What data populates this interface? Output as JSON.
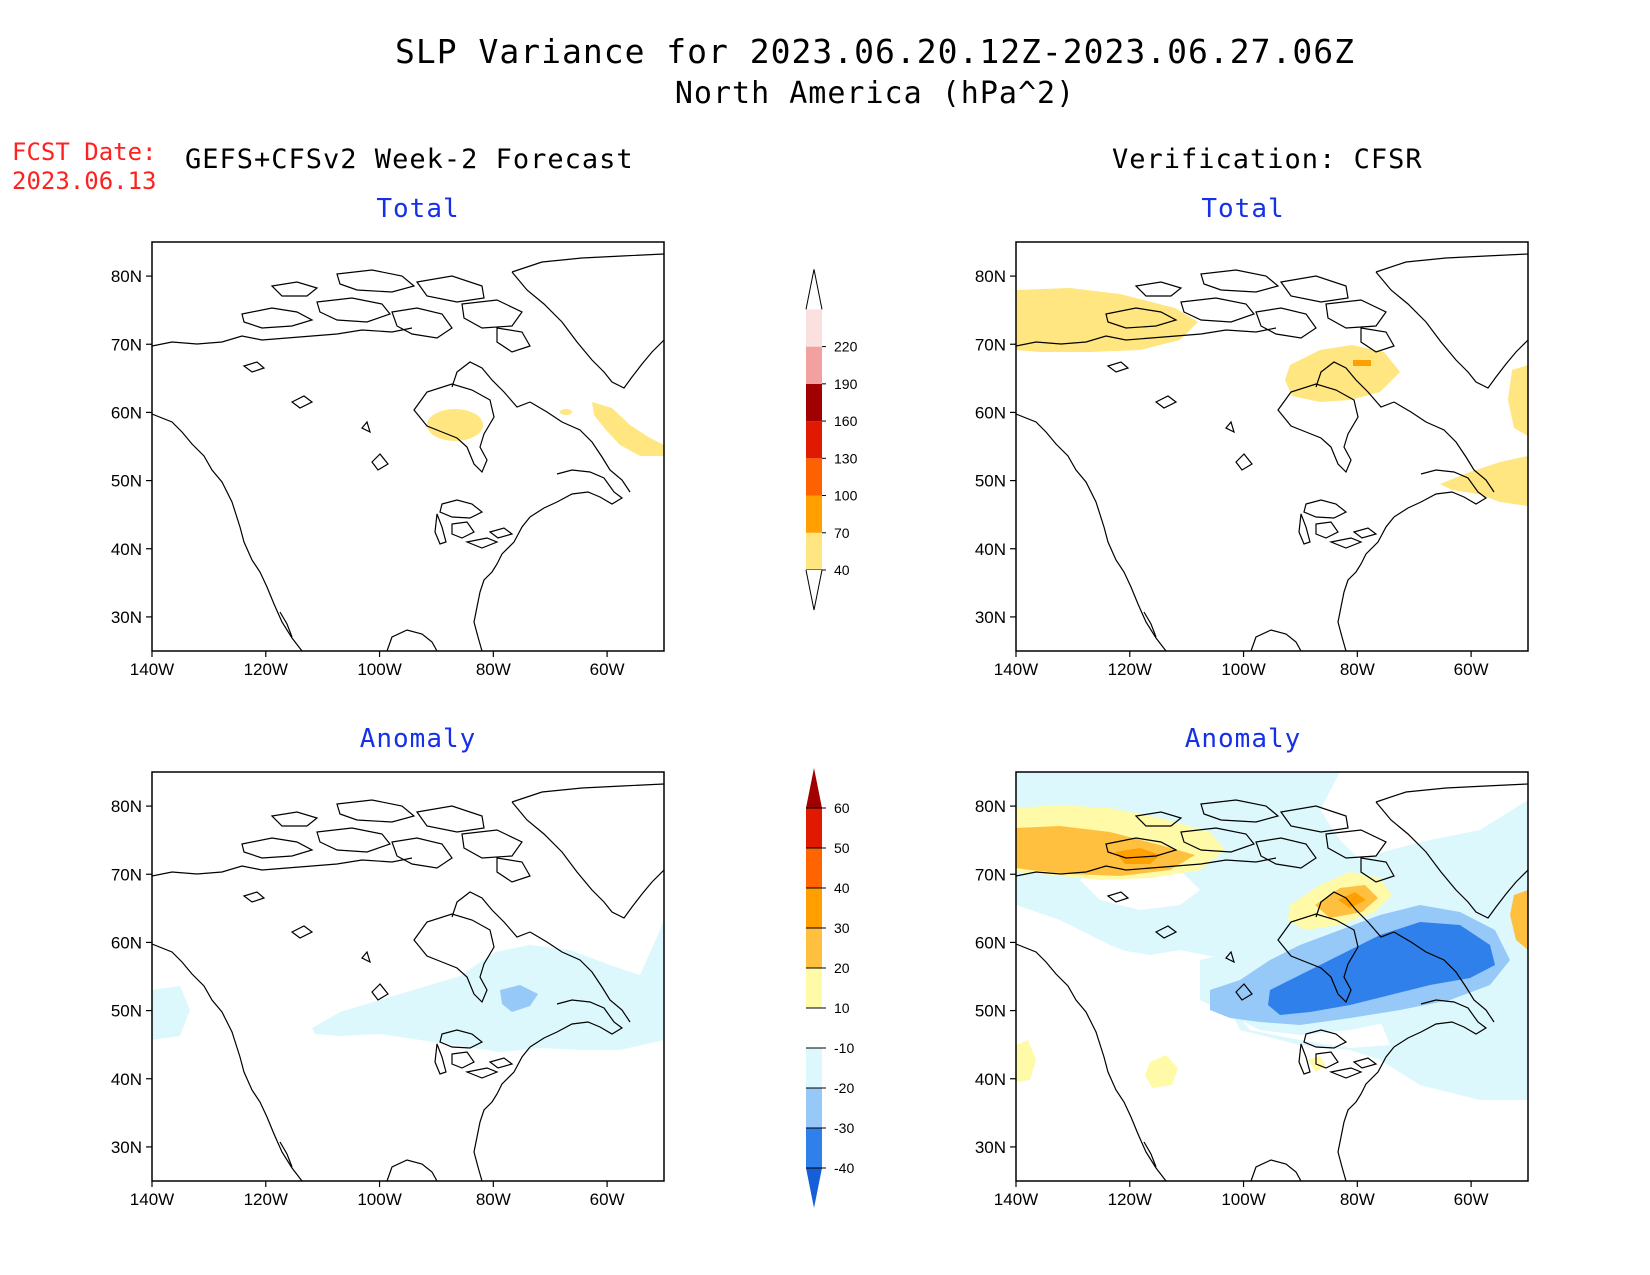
{
  "header": {
    "title_line1": "SLP Variance for 2023.06.20.12Z-2023.06.27.06Z",
    "title_line2": "North America (hPa^2)",
    "fcst_date_label": "FCST Date:",
    "fcst_date_value": "2023.06.13",
    "left_column_title": "GEFS+CFSv2 Week-2 Forecast",
    "right_column_title": "Verification: CFSR"
  },
  "panels": {
    "top_left_title": "Total",
    "top_right_title": "Total",
    "bottom_left_title": "Anomaly",
    "bottom_right_title": "Anomaly"
  },
  "axes": {
    "lat_ticks": [
      "80N",
      "70N",
      "60N",
      "50N",
      "40N",
      "30N"
    ],
    "lon_ticks": [
      "140W",
      "120W",
      "100W",
      "80W",
      "60W"
    ],
    "lat_range": [
      25,
      85
    ],
    "lon_range": [
      -140,
      -50
    ]
  },
  "colorbar_total": {
    "labels": [
      "40",
      "70",
      "100",
      "130",
      "160",
      "190",
      "220"
    ],
    "colors": [
      "#ffe680",
      "#ffa000",
      "#ff6000",
      "#e01a00",
      "#a00000",
      "#f2a0a0",
      "#fbe0e0"
    ]
  },
  "colorbar_anomaly": {
    "labels": [
      "-40",
      "-30",
      "-20",
      "-10",
      "10",
      "20",
      "30",
      "40",
      "50",
      "60"
    ],
    "colors": [
      "#1560d8",
      "#2f80ea",
      "#96c8f8",
      "#dcf8fc",
      "#ffffff",
      "#fffaa8",
      "#ffc040",
      "#ffa000",
      "#ff6400",
      "#e01a00",
      "#a00000"
    ]
  },
  "colors": {
    "title_blue": "#1530e6",
    "fcst_red": "#ff2020"
  }
}
